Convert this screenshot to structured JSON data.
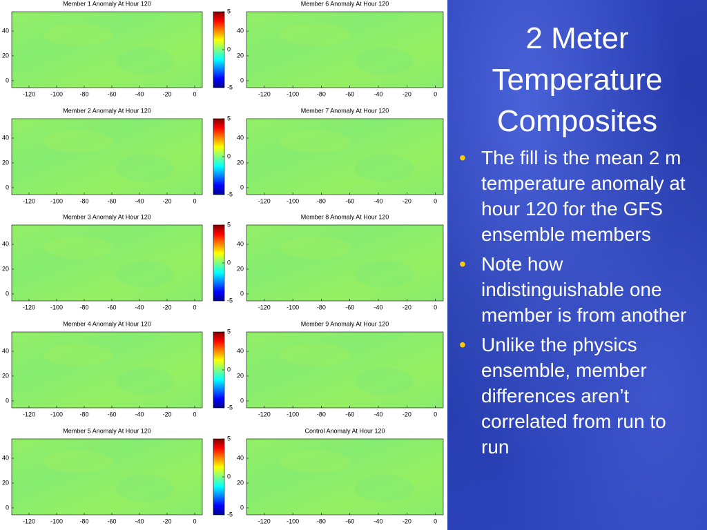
{
  "slide": {
    "title": "2 Meter Temperature Composites",
    "bullets": [
      "The fill is the mean 2 m temperature anomaly at hour 120 for the GFS ensemble members",
      "Note how indistinguishable one member is from another",
      "Unlike the physics ensemble, member differences aren’t correlated from run to run"
    ]
  },
  "maps": {
    "titles": [
      "Member 1 Anomaly At Hour 120",
      "Member 2 Anomaly At Hour 120",
      "Member 3 Anomaly At Hour 120",
      "Member 4 Anomaly At Hour 120",
      "Member 5 Anomaly At Hour 120",
      "Member 6 Anomaly At Hour 120",
      "Member 7 Anomaly At Hour 120",
      "Member 8 Anomaly At Hour 120",
      "Member 9 Anomaly At Hour 120",
      "Control Anomaly At Hour 120"
    ],
    "xlim": [
      -132.5,
      5.5
    ],
    "xticks": [
      -120,
      -100,
      -80,
      -60,
      -40,
      -20,
      0
    ],
    "ylim": [
      -5.6,
      55.6
    ],
    "yticks": [
      0,
      20,
      40
    ],
    "colorbar_lim": [
      -5,
      5
    ],
    "colorbar_ticks": [
      -5,
      0,
      5
    ]
  }
}
